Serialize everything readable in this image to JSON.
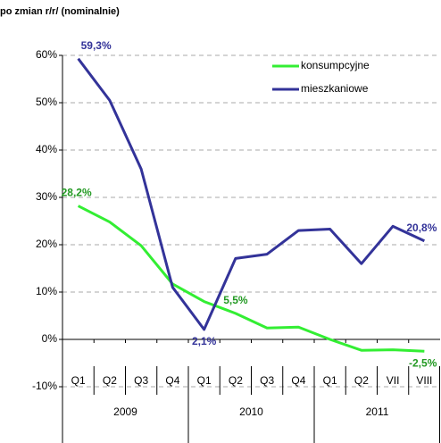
{
  "chart_data": {
    "type": "line",
    "title": "po zmian r/r/ (nominalnie)",
    "groups": [
      {
        "name": "2009",
        "categories": [
          "Q1",
          "Q2",
          "Q3",
          "Q4"
        ]
      },
      {
        "name": "2010",
        "categories": [
          "Q1",
          "Q2",
          "Q3",
          "Q4"
        ]
      },
      {
        "name": "2011",
        "categories": [
          "Q1",
          "Q2",
          "VII",
          "VIII"
        ]
      }
    ],
    "series": [
      {
        "name": "konsumpcyjne",
        "color": "#33ee33",
        "label_color": "#229922",
        "values": [
          28.2,
          24.8,
          19.8,
          11.7,
          8.0,
          5.5,
          2.4,
          2.6,
          0.0,
          -2.3,
          -2.2,
          -2.5
        ],
        "value_labels": [
          "28,2%",
          null,
          null,
          null,
          null,
          "5,5%",
          null,
          null,
          null,
          null,
          null,
          "-2,5%"
        ]
      },
      {
        "name": "mieszkaniowe",
        "color": "#333399",
        "label_color": "#333399",
        "values": [
          59.3,
          50.5,
          36.0,
          11.0,
          2.1,
          17.1,
          18.0,
          23.0,
          23.3,
          16.0,
          23.9,
          20.8
        ],
        "value_labels": [
          "59,3%",
          null,
          null,
          null,
          "2,1%",
          null,
          null,
          null,
          null,
          null,
          null,
          "20,8%"
        ]
      }
    ],
    "ylim": [
      -10,
      60
    ],
    "yticks": [
      {
        "value": -10,
        "label": "-10%"
      },
      {
        "value": 0,
        "label": "0%"
      },
      {
        "value": 10,
        "label": "10%"
      },
      {
        "value": 20,
        "label": "20%"
      },
      {
        "value": 30,
        "label": "30%"
      },
      {
        "value": 40,
        "label": "40%"
      },
      {
        "value": 50,
        "label": "50%"
      },
      {
        "value": 60,
        "label": "60%"
      }
    ],
    "grid": true,
    "legend": "top-right"
  }
}
